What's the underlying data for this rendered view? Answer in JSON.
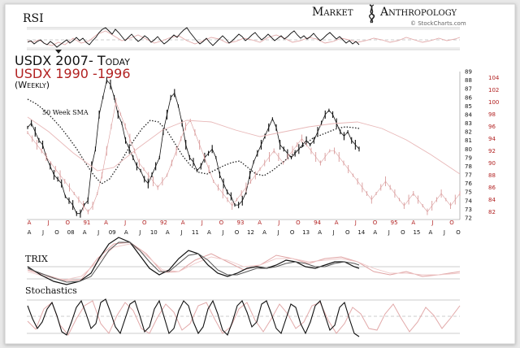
{
  "header": {
    "brand_left": "Market",
    "brand_right": "Anthropology",
    "source": "© StockCharts.com"
  },
  "panels": {
    "rsi_label": "RSI",
    "trix_label": "TRIX",
    "stoch_label": "Stochastics"
  },
  "chart_data": {
    "type": "line",
    "title_primary": "USDX 2007- Today",
    "title_secondary": "USDX 1990 -1996",
    "subtitle": "(Weekly)",
    "annotation_sma": "50 Week SMA",
    "series": [
      {
        "name": "USDX 2007- Today",
        "color": "#111111",
        "x": [
          0,
          4,
          8,
          12,
          16,
          20,
          24,
          28,
          32,
          36,
          40,
          44,
          48,
          52,
          56,
          60,
          64,
          68,
          72,
          76,
          80,
          84,
          88,
          92,
          96,
          100,
          104,
          108,
          112,
          116,
          120,
          124,
          128,
          132,
          136,
          140,
          144,
          148,
          152,
          156,
          160,
          164,
          168,
          172,
          176,
          180,
          184,
          188,
          192,
          196,
          200,
          204,
          208,
          212,
          216,
          220,
          224,
          228,
          232,
          236,
          240,
          244,
          248,
          252,
          256,
          260,
          264,
          268,
          272,
          276,
          280,
          284,
          288,
          292,
          296,
          300,
          304,
          308,
          312,
          316,
          320,
          324,
          328,
          332,
          336,
          340,
          344,
          348,
          352
        ],
        "y": [
          82.5,
          83,
          82,
          81,
          80.5,
          79,
          78,
          77,
          76.5,
          76,
          74.5,
          74,
          73.5,
          72.5,
          72.5,
          73.5,
          74,
          78,
          80,
          84,
          86,
          88,
          87.5,
          86,
          84,
          83,
          81,
          80,
          79,
          78,
          77.5,
          76.5,
          76,
          77,
          78,
          79,
          82,
          84,
          86,
          86.5,
          85,
          83,
          80.5,
          79,
          78.5,
          77.5,
          78,
          79,
          79.5,
          80,
          79,
          77,
          76,
          75,
          74.5,
          73.5,
          73.5,
          74,
          75,
          77,
          78.5,
          79.5,
          80.5,
          81.5,
          82.5,
          83.5,
          82.5,
          80.5,
          80,
          79.5,
          79,
          79.5,
          80,
          80.5,
          81,
          80.5,
          81,
          82,
          83,
          84,
          84.5,
          84,
          83,
          82,
          81.5,
          82,
          81,
          80.5,
          80
        ]
      },
      {
        "name": "USDX 1990 -1996",
        "color": "#d99a9a",
        "x": [
          0,
          5,
          10,
          15,
          20,
          25,
          30,
          35,
          40,
          45,
          50,
          55,
          60,
          65,
          70,
          75,
          80,
          85,
          90,
          95,
          100,
          105,
          110,
          115,
          120,
          125,
          130,
          135,
          140,
          145,
          150,
          155,
          160,
          165,
          170,
          175,
          180,
          185,
          190,
          195,
          200,
          205,
          210,
          215,
          220,
          225,
          230,
          235,
          240,
          245,
          250,
          255,
          260,
          265,
          270,
          275,
          280,
          285,
          290,
          295,
          300,
          305,
          310,
          315,
          320,
          325,
          330,
          335,
          340,
          345,
          350,
          355,
          360,
          365,
          370,
          375,
          380,
          385,
          390,
          395,
          400,
          405,
          410,
          415,
          420,
          425,
          430,
          435,
          440,
          445,
          450,
          455,
          460,
          465
        ],
        "y": [
          95,
          94,
          93,
          92,
          91,
          90,
          89,
          88,
          87,
          86,
          85,
          84,
          83,
          82,
          83,
          85,
          88,
          92,
          96,
          100,
          98,
          96,
          94,
          92,
          90,
          89,
          88,
          87,
          86,
          87,
          88,
          90,
          92,
          94,
          96,
          97,
          95,
          93,
          91,
          89,
          87,
          86,
          85,
          84,
          83,
          84,
          85,
          86,
          87,
          88,
          89,
          90,
          91,
          92,
          91,
          90,
          91,
          92,
          93,
          94,
          93,
          92,
          91,
          90,
          91,
          92,
          92,
          91,
          90,
          89,
          88,
          87,
          86,
          85,
          84,
          85,
          86,
          87,
          86,
          85,
          84,
          83,
          84,
          85,
          84,
          83,
          82,
          83,
          84,
          85,
          84,
          83,
          84,
          85
        ]
      }
    ],
    "y_ticks_left": [
      72,
      73,
      74,
      75,
      76,
      77,
      78,
      79,
      80,
      81,
      82,
      83,
      84,
      85,
      86,
      87,
      88,
      89
    ],
    "y_ticks_right": [
      104,
      102,
      100,
      98,
      96,
      94,
      92,
      90,
      88,
      86,
      84,
      82
    ],
    "x_labels_top": [
      "A",
      "J",
      "O",
      "91",
      "A",
      "J",
      "O",
      "92",
      "A",
      "J",
      "O",
      "93",
      "A",
      "J",
      "O",
      "94",
      "A",
      "J",
      "O",
      "95",
      "A",
      "J",
      "O"
    ],
    "x_labels_bottom": [
      "A",
      "J",
      "O",
      "08",
      "A",
      "J",
      "09",
      "A",
      "J",
      "10",
      "A",
      "J",
      "11",
      "A",
      "J",
      "O",
      "12",
      "A",
      "J",
      "O",
      "13",
      "A",
      "J",
      "O",
      "14",
      "A",
      "J",
      "O",
      "15",
      "A",
      "J",
      "O"
    ],
    "grid": true
  }
}
